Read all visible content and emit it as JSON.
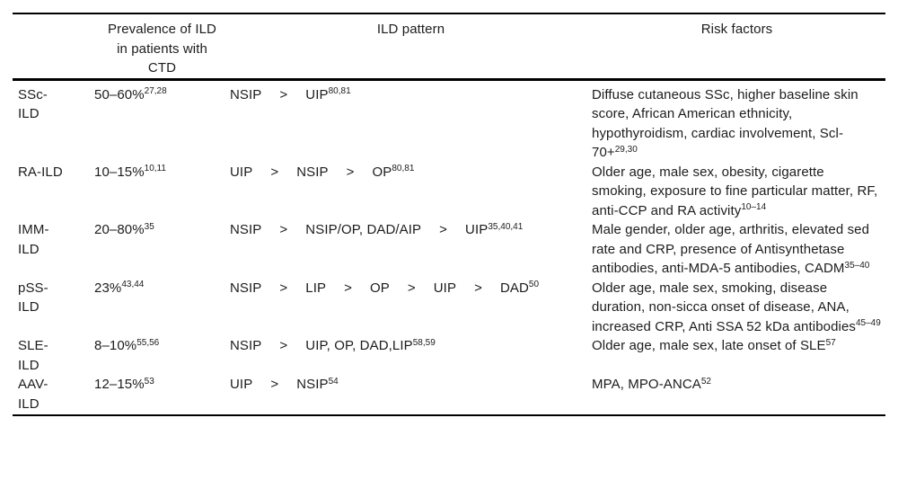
{
  "table": {
    "header": {
      "col_label": "",
      "col_prevalence": "Prevalence of ILD in patients with CTD",
      "col_pattern": "ILD pattern",
      "col_risk": "Risk factors"
    },
    "rows": [
      {
        "label": "SSc-ILD",
        "prevalence": {
          "text": "50–60%",
          "sup": "27,28"
        },
        "pattern": [
          {
            "text": "NSIP",
            "sup": ""
          },
          {
            "text": ">",
            "sup": ""
          },
          {
            "text": "UIP",
            "sup": "80,81"
          }
        ],
        "risk": {
          "text": "Diffuse cutaneous SSc, higher baseline skin score, African American ethnicity, hypothyroidism, cardiac involvement, Scl-70+",
          "sup": "29,30"
        }
      },
      {
        "label": "RA-ILD",
        "prevalence": {
          "text": "10–15%",
          "sup": "10,11"
        },
        "pattern": [
          {
            "text": "UIP",
            "sup": ""
          },
          {
            "text": ">",
            "sup": ""
          },
          {
            "text": "NSIP",
            "sup": ""
          },
          {
            "text": ">",
            "sup": ""
          },
          {
            "text": "OP",
            "sup": "80,81"
          }
        ],
        "risk": {
          "text": "Older age, male sex, obesity, cigarette smoking, exposure to fine particular matter, RF, anti-CCP and RA activity",
          "sup": "10–14"
        }
      },
      {
        "label": "IMM-ILD",
        "prevalence": {
          "text": "20–80%",
          "sup": "35"
        },
        "pattern": [
          {
            "text": "NSIP",
            "sup": ""
          },
          {
            "text": ">",
            "sup": ""
          },
          {
            "text": "NSIP/OP, DAD/AIP",
            "sup": ""
          },
          {
            "text": ">",
            "sup": ""
          },
          {
            "text": "UIP",
            "sup": "35,40,41"
          }
        ],
        "risk": {
          "text": "Male gender, older age, arthritis, elevated sed rate and CRP, presence of Antisynthetase antibodies, anti-MDA-5 antibodies, CADM",
          "sup": "35–40"
        }
      },
      {
        "label": "pSS-ILD",
        "prevalence": {
          "text": "23%",
          "sup": "43,44"
        },
        "pattern": [
          {
            "text": "NSIP",
            "sup": ""
          },
          {
            "text": ">",
            "sup": ""
          },
          {
            "text": "LIP",
            "sup": ""
          },
          {
            "text": ">",
            "sup": ""
          },
          {
            "text": "OP",
            "sup": ""
          },
          {
            "text": ">",
            "sup": ""
          },
          {
            "text": "UIP",
            "sup": ""
          },
          {
            "text": ">",
            "sup": ""
          },
          {
            "text": "DAD",
            "sup": "50"
          }
        ],
        "risk": {
          "text": "Older age, male sex, smoking, disease duration, non-sicca onset of disease, ANA, increased CRP, Anti SSA 52 kDa antibodies",
          "sup": "45–49"
        }
      },
      {
        "label": "SLE-ILD",
        "prevalence": {
          "text": "8–10%",
          "sup": "55,56"
        },
        "pattern": [
          {
            "text": "NSIP",
            "sup": ""
          },
          {
            "text": ">",
            "sup": ""
          },
          {
            "text": "UIP, OP, DAD,LIP",
            "sup": "58,59"
          }
        ],
        "risk": {
          "text": "Older age, male sex, late onset of SLE",
          "sup": "57"
        }
      },
      {
        "label": "AAV-ILD",
        "prevalence": {
          "text": "12–15%",
          "sup": "53"
        },
        "pattern": [
          {
            "text": "UIP",
            "sup": ""
          },
          {
            "text": ">",
            "sup": ""
          },
          {
            "text": "NSIP",
            "sup": "54"
          }
        ],
        "risk": {
          "text": "MPA, MPO-ANCA",
          "sup": "52"
        }
      }
    ]
  }
}
